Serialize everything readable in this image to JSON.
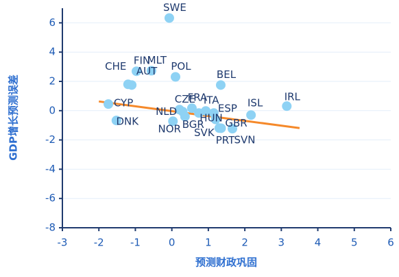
{
  "chart_data": {
    "type": "scatter",
    "xlabel": "预测财政巩固",
    "ylabel": "GDP增长预测误差",
    "labels": [
      "SWE",
      "FIN",
      "MLT",
      "POL",
      "BEL",
      "CHE",
      "AUT",
      "CYP",
      "DNK",
      "CZE",
      "FRA",
      "ITA",
      "NLD",
      "BGR",
      "HUN",
      "NOR",
      "ESP",
      "GBR",
      "SVK",
      "PRT",
      "SVN",
      "ISL",
      "IRL"
    ],
    "x": [
      -0.07,
      -0.97,
      -0.56,
      0.1,
      1.34,
      -1.2,
      -1.1,
      -1.74,
      -1.52,
      0.21,
      0.55,
      0.93,
      0.3,
      0.36,
      0.74,
      0.03,
      1.15,
      1.2,
      1.3,
      1.35,
      1.66,
      2.17,
      3.15
    ],
    "values": [
      6.33,
      2.69,
      2.73,
      2.31,
      1.75,
      1.8,
      1.75,
      0.45,
      -0.67,
      0.07,
      0.17,
      -0.02,
      -0.07,
      -0.4,
      -0.16,
      -0.72,
      -0.16,
      -0.6,
      -1.19,
      -1.2,
      -1.23,
      -0.3,
      0.31
    ],
    "color": "#8ed2f4",
    "trend": {
      "x": [
        -2,
        3.5
      ],
      "values": [
        0.63,
        -1.19
      ],
      "color": "#f5892a"
    },
    "xlim": [
      -3,
      6
    ],
    "ylim": [
      -8,
      7
    ],
    "xticks": [
      -3,
      -2,
      -1,
      0,
      1,
      2,
      3,
      4,
      5,
      6
    ],
    "yticks": [
      -8,
      -6,
      -4,
      -2,
      0,
      2,
      4,
      6
    ],
    "grid": true
  }
}
